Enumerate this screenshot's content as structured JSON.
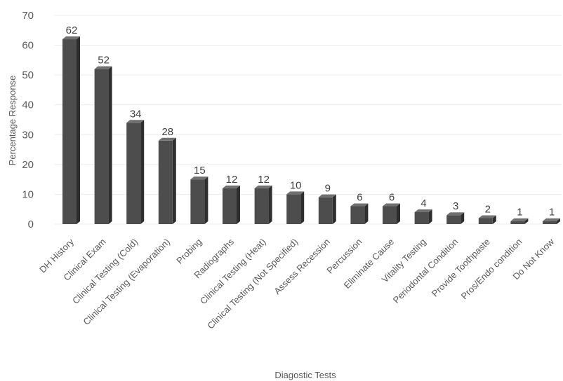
{
  "chart_data": {
    "type": "bar",
    "xlabel": "Diagostic Tests",
    "ylabel": "Percentage Response",
    "ylim": [
      0,
      70
    ],
    "yticks": [
      "0",
      "10",
      "20",
      "30",
      "40",
      "50",
      "60",
      "70"
    ],
    "grid": true,
    "bar_color": "#4d4d4d",
    "categories": [
      "DH History",
      "Clinical Exam",
      "Clinical Testing (Cold)",
      "Clinical Testing (Evaporation)",
      "Probing",
      "Radiographs",
      "Clinical Testing (Heat)",
      "Clinical Testing (Not Specified)",
      "Assess Recession",
      "Percussion",
      "Eliminate Cause",
      "Vitality Testing",
      "Periodontal Condition",
      "Provide Toothpaste",
      "Pros/Endo condition",
      "Do Not Know"
    ],
    "values": [
      62,
      52,
      34,
      28,
      15,
      12,
      12,
      10,
      9,
      6,
      6,
      4,
      3,
      2,
      1,
      1
    ]
  }
}
